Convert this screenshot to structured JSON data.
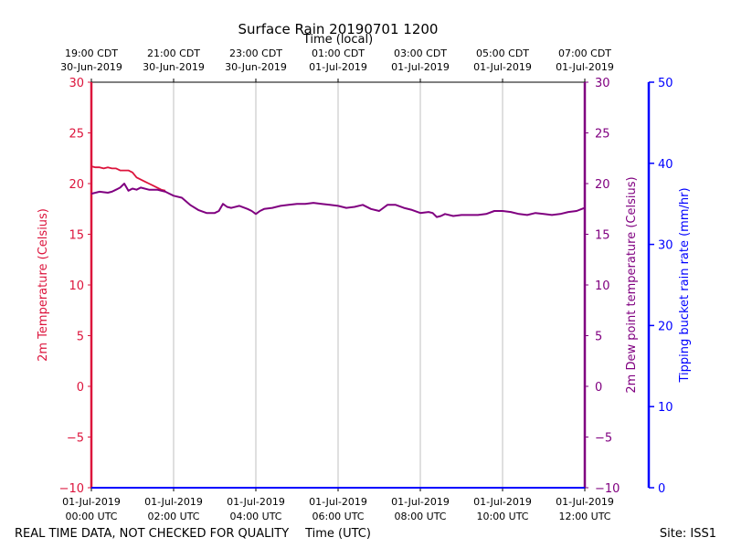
{
  "chart_data": {
    "type": "line",
    "title": "Surface Rain 20190701 1200",
    "top_axis_label": "Time (local)",
    "xlabel": "Time (UTC)",
    "ylabel_left": "2m Temperature (Celsius)",
    "ylabel_right": "2m Dew point temperature (Celsius)",
    "ylabel_rain": "Tipping bucket rain rate (mm/hr)",
    "footer_left": "REAL TIME DATA, NOT CHECKED FOR QUALITY",
    "footer_right": "Site: ISS1",
    "xlim_hours": [
      0,
      12
    ],
    "ylim_temp": [
      -10,
      30
    ],
    "ylim_rain": [
      0,
      50
    ],
    "temp_ticks": [
      30,
      25,
      20,
      15,
      10,
      5,
      0,
      -5,
      -10
    ],
    "rain_ticks": [
      50,
      40,
      30,
      20,
      10,
      0
    ],
    "x_ticks_utc": [
      {
        "hour": 0,
        "line1": "01-Jul-2019",
        "line2": "00:00 UTC"
      },
      {
        "hour": 2,
        "line1": "01-Jul-2019",
        "line2": "02:00 UTC"
      },
      {
        "hour": 4,
        "line1": "01-Jul-2019",
        "line2": "04:00 UTC"
      },
      {
        "hour": 6,
        "line1": "01-Jul-2019",
        "line2": "06:00 UTC"
      },
      {
        "hour": 8,
        "line1": "01-Jul-2019",
        "line2": "08:00 UTC"
      },
      {
        "hour": 10,
        "line1": "01-Jul-2019",
        "line2": "10:00 UTC"
      },
      {
        "hour": 12,
        "line1": "01-Jul-2019",
        "line2": "12:00 UTC"
      }
    ],
    "x_ticks_local": [
      {
        "hour": 0,
        "line1": "19:00 CDT",
        "line2": "30-Jun-2019"
      },
      {
        "hour": 2,
        "line1": "21:00 CDT",
        "line2": "30-Jun-2019"
      },
      {
        "hour": 4,
        "line1": "23:00 CDT",
        "line2": "30-Jun-2019"
      },
      {
        "hour": 6,
        "line1": "01:00 CDT",
        "line2": "01-Jul-2019"
      },
      {
        "hour": 8,
        "line1": "03:00 CDT",
        "line2": "01-Jul-2019"
      },
      {
        "hour": 10,
        "line1": "05:00 CDT",
        "line2": "01-Jul-2019"
      },
      {
        "hour": 12,
        "line1": "07:00 CDT",
        "line2": "01-Jul-2019"
      }
    ],
    "colors": {
      "temperature": "#dc143c",
      "dewpoint": "#800080",
      "rain": "#0000ff",
      "grid": "#b0b0b0",
      "text": "#000000"
    },
    "series": [
      {
        "name": "2m Temperature",
        "x_hours": [
          0,
          0.1,
          0.2,
          0.3,
          0.4,
          0.5,
          0.6,
          0.7,
          0.8,
          0.9,
          1.0,
          1.1,
          1.2,
          1.3,
          1.4,
          1.5,
          1.6,
          1.7,
          1.8
        ],
        "values": [
          21.7,
          21.6,
          21.6,
          21.5,
          21.6,
          21.5,
          21.5,
          21.3,
          21.3,
          21.3,
          21.1,
          20.6,
          20.4,
          20.2,
          20.0,
          19.8,
          19.6,
          19.4,
          19.3
        ]
      },
      {
        "name": "2m Dew point temperature",
        "x_hours": [
          0,
          0.2,
          0.4,
          0.5,
          0.6,
          0.7,
          0.8,
          0.9,
          1.0,
          1.1,
          1.2,
          1.4,
          1.6,
          1.8,
          1.9,
          2.0,
          2.2,
          2.4,
          2.6,
          2.8,
          3.0,
          3.1,
          3.2,
          3.3,
          3.4,
          3.6,
          3.8,
          3.9,
          4.0,
          4.1,
          4.2,
          4.4,
          4.6,
          4.8,
          5.0,
          5.2,
          5.4,
          5.6,
          5.8,
          6.0,
          6.2,
          6.4,
          6.6,
          6.8,
          7.0,
          7.2,
          7.4,
          7.6,
          7.8,
          8.0,
          8.2,
          8.3,
          8.4,
          8.5,
          8.6,
          8.8,
          9.0,
          9.2,
          9.4,
          9.6,
          9.8,
          10.0,
          10.2,
          10.4,
          10.6,
          10.8,
          11.0,
          11.2,
          11.4,
          11.6,
          11.8,
          12.0
        ],
        "values": [
          19.0,
          19.2,
          19.1,
          19.2,
          19.4,
          19.6,
          20.0,
          19.3,
          19.5,
          19.4,
          19.6,
          19.4,
          19.4,
          19.2,
          19.0,
          18.8,
          18.6,
          17.9,
          17.4,
          17.1,
          17.1,
          17.3,
          18.0,
          17.7,
          17.6,
          17.8,
          17.5,
          17.3,
          17.0,
          17.3,
          17.5,
          17.6,
          17.8,
          17.9,
          18.0,
          18.0,
          18.1,
          18.0,
          17.9,
          17.8,
          17.6,
          17.7,
          17.9,
          17.5,
          17.3,
          17.9,
          17.9,
          17.6,
          17.4,
          17.1,
          17.2,
          17.1,
          16.7,
          16.8,
          17.0,
          16.8,
          16.9,
          16.9,
          16.9,
          17.0,
          17.3,
          17.3,
          17.2,
          17.0,
          16.9,
          17.1,
          17.0,
          16.9,
          17.0,
          17.2,
          17.3,
          17.6
        ]
      },
      {
        "name": "Tipping bucket rain rate",
        "x_hours": [
          0,
          12
        ],
        "values": [
          0,
          0
        ]
      }
    ]
  }
}
